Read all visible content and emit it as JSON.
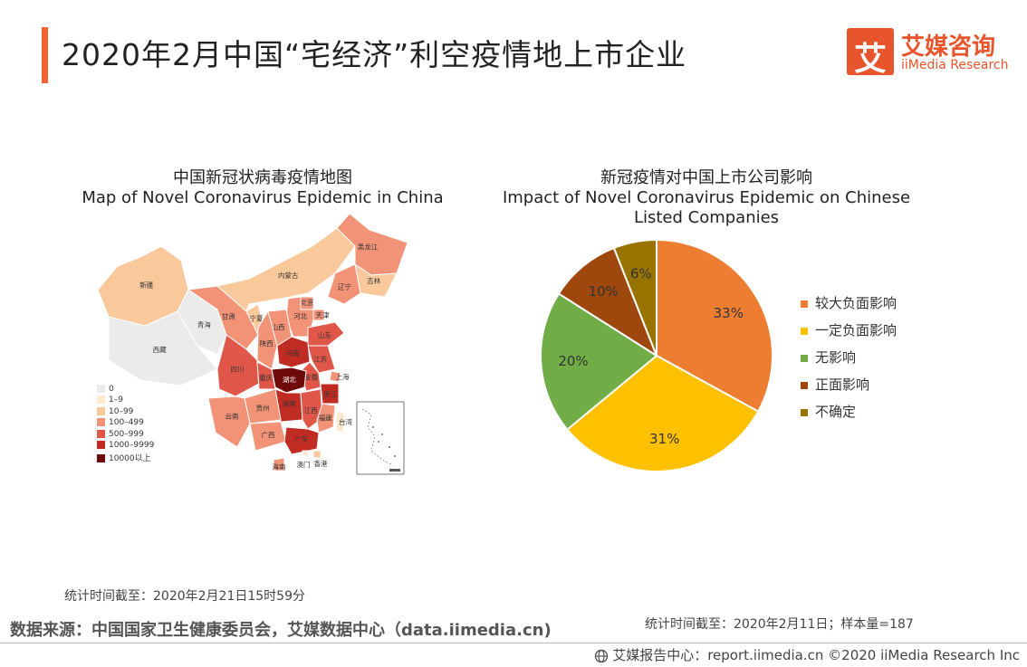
{
  "header": {
    "title": "2020年2月中国“宅经济”利空疫情地上市企业",
    "logo_cn": "艾媒咨询",
    "logo_en": "iiMedia Research",
    "logo_mark": "艾"
  },
  "map_panel": {
    "title_cn": "中国新冠状病毒疫情地图",
    "title_en": "Map of Novel Coronavirus Epidemic in China",
    "legend": [
      {
        "label": "0",
        "color": "#ebebeb"
      },
      {
        "label": "1–9",
        "color": "#fde9cc"
      },
      {
        "label": "10–99",
        "color": "#f9c99b"
      },
      {
        "label": "100–499",
        "color": "#f29276"
      },
      {
        "label": "500–999",
        "color": "#e0574a"
      },
      {
        "label": "1000–9999",
        "color": "#c02c24"
      },
      {
        "label": "10000以上",
        "color": "#6e0a0a"
      }
    ],
    "provinces": [
      {
        "name": "新疆",
        "level": 2
      },
      {
        "name": "西藏",
        "level": 0
      },
      {
        "name": "青海",
        "level": 0
      },
      {
        "name": "甘肃",
        "level": 3
      },
      {
        "name": "内蒙古",
        "level": 2
      },
      {
        "name": "宁夏",
        "level": 2
      },
      {
        "name": "黑龙江",
        "level": 3
      },
      {
        "name": "吉林",
        "level": 2
      },
      {
        "name": "辽宁",
        "level": 3
      },
      {
        "name": "北京",
        "level": 3
      },
      {
        "name": "天津",
        "level": 3
      },
      {
        "name": "河北",
        "level": 3
      },
      {
        "name": "山西",
        "level": 3
      },
      {
        "name": "山东",
        "level": 4
      },
      {
        "name": "陕西",
        "level": 3
      },
      {
        "name": "河南",
        "level": 5
      },
      {
        "name": "江苏",
        "level": 4
      },
      {
        "name": "安徽",
        "level": 4
      },
      {
        "name": "上海",
        "level": 3
      },
      {
        "name": "浙江",
        "level": 5
      },
      {
        "name": "四川",
        "level": 4
      },
      {
        "name": "重庆",
        "level": 4
      },
      {
        "name": "湖北",
        "level": 6
      },
      {
        "name": "湖南",
        "level": 5
      },
      {
        "name": "江西",
        "level": 4
      },
      {
        "name": "福建",
        "level": 3
      },
      {
        "name": "贵州",
        "level": 3
      },
      {
        "name": "云南",
        "level": 3
      },
      {
        "name": "广西",
        "level": 3
      },
      {
        "name": "广东",
        "level": 5
      },
      {
        "name": "台湾",
        "level": 1
      },
      {
        "name": "香港",
        "level": 2
      },
      {
        "name": "澳门",
        "level": 1
      },
      {
        "name": "海南",
        "level": 3
      }
    ],
    "note": "统计时间截至：2020年2月21日15时59分"
  },
  "chart_data": {
    "type": "pie",
    "title": "新冠疫情对中国上市公司影响",
    "subtitle": "Impact of Novel Coronavirus Epidemic on Chinese Listed Companies",
    "categories": [
      "较大负面影响",
      "一定负面影响",
      "无影响",
      "正面影响",
      "不确定"
    ],
    "values": [
      33,
      31,
      20,
      10,
      6
    ],
    "labels": [
      "33%",
      "31%",
      "20%",
      "10%",
      "6%"
    ],
    "colors": [
      "#ed7d31",
      "#ffc000",
      "#70ad47",
      "#9e480e",
      "#997300"
    ],
    "legend_position": "right"
  },
  "pie_panel": {
    "title_cn": "新冠疫情对中国上市公司影响",
    "title_en": "Impact of Novel Coronavirus Epidemic on Chinese Listed Companies",
    "note": "统计时间截至：2020年2月11日；样本量=187"
  },
  "footer": {
    "source": "数据来源：中国国家卫生健康委员会，艾媒数据中心（data.iimedia.cn)",
    "copyright": "艾媒报告中心：report.iimedia.cn  ©2020  iiMedia Research  Inc"
  }
}
